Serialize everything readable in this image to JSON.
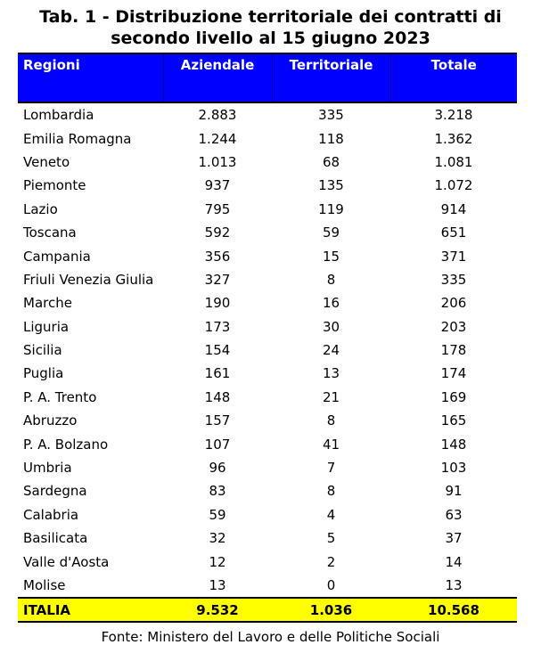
{
  "title": {
    "line1": "Tab. 1 - Distribuzione territoriale dei contratti di",
    "line2": "secondo livello al 15 giugno 2023"
  },
  "footer": "Fonte: Ministero del Lavoro e delle Politiche Sociali",
  "colors": {
    "header_bg": "#0000FE",
    "header_text": "#FFFFFF",
    "total_row_bg": "#FFFF00",
    "rule": "#000000"
  },
  "table": {
    "headers": [
      "Regioni",
      "Aziendale",
      "Territoriale",
      "Totale"
    ],
    "rows": [
      [
        "Lombardia",
        "2.883",
        "335",
        "3.218"
      ],
      [
        "Emilia Romagna",
        "1.244",
        "118",
        "1.362"
      ],
      [
        "Veneto",
        "1.013",
        "68",
        "1.081"
      ],
      [
        "Piemonte",
        "937",
        "135",
        "1.072"
      ],
      [
        "Lazio",
        "795",
        "119",
        "914"
      ],
      [
        "Toscana",
        "592",
        "59",
        "651"
      ],
      [
        "Campania",
        "356",
        "15",
        "371"
      ],
      [
        "Friuli Venezia Giulia",
        "327",
        "8",
        "335"
      ],
      [
        "Marche",
        "190",
        "16",
        "206"
      ],
      [
        "Liguria",
        "173",
        "30",
        "203"
      ],
      [
        "Sicilia",
        "154",
        "24",
        "178"
      ],
      [
        "Puglia",
        "161",
        "13",
        "174"
      ],
      [
        "P. A. Trento",
        "148",
        "21",
        "169"
      ],
      [
        "Abruzzo",
        "157",
        "8",
        "165"
      ],
      [
        "P. A. Bolzano",
        "107",
        "41",
        "148"
      ],
      [
        "Umbria",
        "96",
        "7",
        "103"
      ],
      [
        "Sardegna",
        "83",
        "8",
        "91"
      ],
      [
        "Calabria",
        "59",
        "4",
        "63"
      ],
      [
        "Basilicata",
        "32",
        "5",
        "37"
      ],
      [
        "Valle d'Aosta",
        "12",
        "2",
        "14"
      ],
      [
        "Molise",
        "13",
        "0",
        "13"
      ]
    ],
    "total_row": [
      "ITALIA",
      "9.532",
      "1.036",
      "10.568"
    ]
  },
  "chart_data": {
    "type": "table",
    "title": "Tab. 1 - Distribuzione territoriale dei contratti di secondo livello al 15 giugno 2023",
    "columns": [
      "Regioni",
      "Aziendale",
      "Territoriale",
      "Totale"
    ],
    "rows": [
      {
        "regione": "Lombardia",
        "aziendale": 2883,
        "territoriale": 335,
        "totale": 3218
      },
      {
        "regione": "Emilia Romagna",
        "aziendale": 1244,
        "territoriale": 118,
        "totale": 1362
      },
      {
        "regione": "Veneto",
        "aziendale": 1013,
        "territoriale": 68,
        "totale": 1081
      },
      {
        "regione": "Piemonte",
        "aziendale": 937,
        "territoriale": 135,
        "totale": 1072
      },
      {
        "regione": "Lazio",
        "aziendale": 795,
        "territoriale": 119,
        "totale": 914
      },
      {
        "regione": "Toscana",
        "aziendale": 592,
        "territoriale": 59,
        "totale": 651
      },
      {
        "regione": "Campania",
        "aziendale": 356,
        "territoriale": 15,
        "totale": 371
      },
      {
        "regione": "Friuli Venezia Giulia",
        "aziendale": 327,
        "territoriale": 8,
        "totale": 335
      },
      {
        "regione": "Marche",
        "aziendale": 190,
        "territoriale": 16,
        "totale": 206
      },
      {
        "regione": "Liguria",
        "aziendale": 173,
        "territoriale": 30,
        "totale": 203
      },
      {
        "regione": "Sicilia",
        "aziendale": 154,
        "territoriale": 24,
        "totale": 178
      },
      {
        "regione": "Puglia",
        "aziendale": 161,
        "territoriale": 13,
        "totale": 174
      },
      {
        "regione": "P. A. Trento",
        "aziendale": 148,
        "territoriale": 21,
        "totale": 169
      },
      {
        "regione": "Abruzzo",
        "aziendale": 157,
        "territoriale": 8,
        "totale": 165
      },
      {
        "regione": "P. A. Bolzano",
        "aziendale": 107,
        "territoriale": 41,
        "totale": 148
      },
      {
        "regione": "Umbria",
        "aziendale": 96,
        "territoriale": 7,
        "totale": 103
      },
      {
        "regione": "Sardegna",
        "aziendale": 83,
        "territoriale": 8,
        "totale": 91
      },
      {
        "regione": "Calabria",
        "aziendale": 59,
        "territoriale": 4,
        "totale": 63
      },
      {
        "regione": "Basilicata",
        "aziendale": 32,
        "territoriale": 5,
        "totale": 37
      },
      {
        "regione": "Valle d'Aosta",
        "aziendale": 12,
        "territoriale": 2,
        "totale": 14
      },
      {
        "regione": "Molise",
        "aziendale": 13,
        "territoriale": 0,
        "totale": 13
      }
    ],
    "total": {
      "regione": "ITALIA",
      "aziendale": 9532,
      "territoriale": 1036,
      "totale": 10568
    },
    "source": "Fonte: Ministero del Lavoro e delle Politiche Sociali"
  }
}
